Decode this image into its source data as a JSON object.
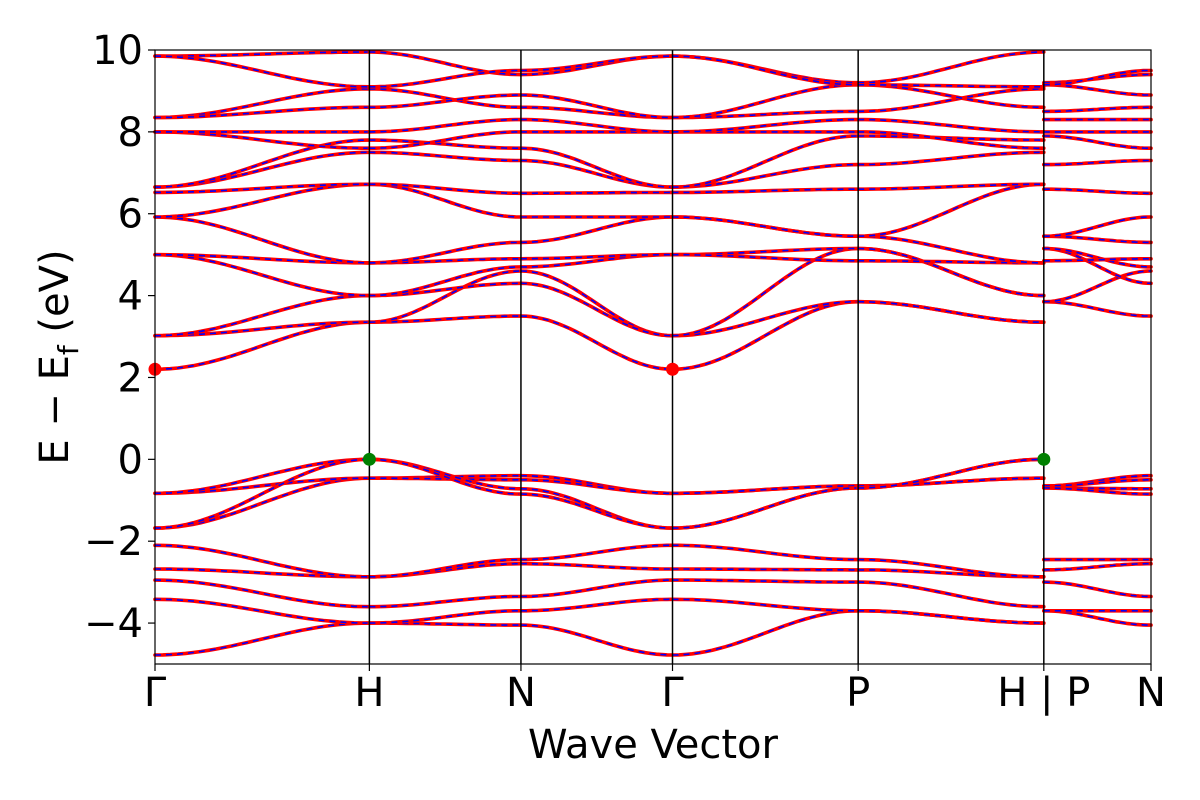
{
  "chart_data": {
    "type": "line",
    "title": "",
    "xlabel": "Wave Vector",
    "ylabel_parts": {
      "main": "E − E",
      "sub": "f",
      "unit": " (eV)"
    },
    "ylim": [
      -5,
      10
    ],
    "y_ticks": [
      -4,
      -2,
      0,
      2,
      4,
      6,
      8,
      10
    ],
    "y_tick_labels": [
      "−4",
      "−2",
      "0",
      "2",
      "4",
      "6",
      "8",
      "10"
    ],
    "x_ticks": [
      {
        "pos": 0.0,
        "label": "Γ"
      },
      {
        "pos": 1.0,
        "label": "H"
      },
      {
        "pos": 1.707,
        "label": "N"
      },
      {
        "pos": 2.414,
        "label": "Γ"
      },
      {
        "pos": 3.28,
        "label": "P"
      },
      {
        "pos": 4.146,
        "label": "H | P"
      },
      {
        "pos": 4.646,
        "label": "N"
      }
    ],
    "xlim": [
      0,
      4.646
    ],
    "grid": false,
    "legend": "none",
    "band_style": {
      "color": "#ff0000",
      "overlay_color": "#0000ff",
      "overlay_dash": "dashed"
    },
    "segments": [
      {
        "path": "Γ-H",
        "x": [
          0.0,
          1.0
        ],
        "bands": [
          [
            -4.78,
            -4.0
          ],
          [
            -3.42,
            -4.0
          ],
          [
            -2.95,
            -3.6
          ],
          [
            -2.68,
            -2.87
          ],
          [
            -2.1,
            -2.87
          ],
          [
            -1.68,
            -0.46
          ],
          [
            -0.83,
            -0.46
          ],
          [
            -0.83,
            0.0
          ],
          [
            -1.68,
            0.0
          ],
          [
            2.2,
            3.35
          ],
          [
            3.02,
            3.35
          ],
          [
            3.02,
            4.0
          ],
          [
            5.0,
            4.0
          ],
          [
            5.0,
            4.8
          ],
          [
            5.92,
            4.8
          ],
          [
            5.92,
            6.72
          ],
          [
            6.52,
            6.72
          ],
          [
            6.65,
            7.5
          ],
          [
            6.65,
            7.8
          ],
          [
            8.0,
            7.6
          ],
          [
            8.0,
            8.0
          ],
          [
            8.35,
            9.05
          ],
          [
            8.35,
            8.6
          ],
          [
            9.85,
            9.95
          ],
          [
            9.85,
            9.1
          ]
        ]
      },
      {
        "path": "H-N",
        "x": [
          1.0,
          1.707
        ],
        "bands": [
          [
            -4.0,
            -4.05
          ],
          [
            -4.0,
            -3.7
          ],
          [
            -3.6,
            -3.35
          ],
          [
            -2.87,
            -2.55
          ],
          [
            -2.87,
            -2.45
          ],
          [
            -0.46,
            -0.4
          ],
          [
            -0.46,
            -0.5
          ],
          [
            0.0,
            -0.72
          ],
          [
            0.0,
            -0.85
          ],
          [
            3.35,
            3.5
          ],
          [
            3.35,
            4.6
          ],
          [
            4.0,
            4.3
          ],
          [
            4.0,
            4.7
          ],
          [
            4.8,
            4.9
          ],
          [
            4.8,
            5.3
          ],
          [
            6.72,
            5.92
          ],
          [
            6.72,
            6.5
          ],
          [
            7.5,
            7.3
          ],
          [
            7.8,
            7.6
          ],
          [
            7.6,
            8.0
          ],
          [
            8.0,
            8.3
          ],
          [
            9.05,
            8.6
          ],
          [
            8.6,
            8.9
          ],
          [
            9.95,
            9.4
          ],
          [
            9.1,
            9.5
          ]
        ]
      },
      {
        "path": "N-Γ",
        "x": [
          1.707,
          2.414
        ],
        "bands": [
          [
            -4.05,
            -4.78
          ],
          [
            -3.7,
            -3.42
          ],
          [
            -3.35,
            -2.95
          ],
          [
            -2.55,
            -2.68
          ],
          [
            -2.45,
            -2.1
          ],
          [
            -0.4,
            -0.83
          ],
          [
            -0.5,
            -0.83
          ],
          [
            -0.72,
            -1.68
          ],
          [
            -0.85,
            -1.68
          ],
          [
            3.5,
            2.2
          ],
          [
            4.6,
            3.02
          ],
          [
            4.3,
            3.02
          ],
          [
            4.7,
            5.0
          ],
          [
            4.9,
            5.0
          ],
          [
            5.3,
            5.92
          ],
          [
            5.92,
            5.92
          ],
          [
            6.5,
            6.52
          ],
          [
            7.3,
            6.65
          ],
          [
            7.6,
            6.65
          ],
          [
            8.0,
            8.0
          ],
          [
            8.3,
            8.0
          ],
          [
            8.6,
            8.35
          ],
          [
            8.9,
            8.35
          ],
          [
            9.4,
            9.85
          ],
          [
            9.5,
            9.85
          ]
        ]
      },
      {
        "path": "Γ-P",
        "x": [
          2.414,
          3.28
        ],
        "bands": [
          [
            -4.78,
            -3.7
          ],
          [
            -3.42,
            -3.7
          ],
          [
            -2.95,
            -3.0
          ],
          [
            -2.68,
            -2.7
          ],
          [
            -2.1,
            -2.45
          ],
          [
            -0.83,
            -0.65
          ],
          [
            -0.83,
            -0.65
          ],
          [
            -1.68,
            -0.7
          ],
          [
            -1.68,
            -0.7
          ],
          [
            2.2,
            3.85
          ],
          [
            3.02,
            3.85
          ],
          [
            3.02,
            5.15
          ],
          [
            5.0,
            5.15
          ],
          [
            5.0,
            4.85
          ],
          [
            5.92,
            5.45
          ],
          [
            5.92,
            5.45
          ],
          [
            6.52,
            6.6
          ],
          [
            6.65,
            7.2
          ],
          [
            6.65,
            7.9
          ],
          [
            8.0,
            8.0
          ],
          [
            8.0,
            8.3
          ],
          [
            8.35,
            8.5
          ],
          [
            8.35,
            9.15
          ],
          [
            9.85,
            9.2
          ],
          [
            9.85,
            9.15
          ]
        ]
      },
      {
        "path": "P-H",
        "x": [
          3.28,
          4.146
        ],
        "bands": [
          [
            -3.7,
            -4.0
          ],
          [
            -3.7,
            -4.0
          ],
          [
            -3.0,
            -3.6
          ],
          [
            -2.7,
            -2.87
          ],
          [
            -2.45,
            -2.87
          ],
          [
            -0.65,
            -0.46
          ],
          [
            -0.65,
            -0.46
          ],
          [
            -0.7,
            0.0
          ],
          [
            -0.7,
            0.0
          ],
          [
            3.85,
            3.35
          ],
          [
            3.85,
            3.35
          ],
          [
            5.15,
            4.0
          ],
          [
            5.15,
            4.0
          ],
          [
            4.85,
            4.8
          ],
          [
            5.45,
            4.8
          ],
          [
            5.45,
            6.72
          ],
          [
            6.6,
            6.72
          ],
          [
            7.2,
            7.5
          ],
          [
            7.9,
            7.8
          ],
          [
            8.0,
            7.6
          ],
          [
            8.3,
            8.0
          ],
          [
            8.5,
            9.05
          ],
          [
            9.15,
            8.6
          ],
          [
            9.2,
            9.95
          ],
          [
            9.15,
            9.1
          ]
        ]
      },
      {
        "path": "P-N",
        "x": [
          4.146,
          4.646
        ],
        "bands": [
          [
            -3.7,
            -4.05
          ],
          [
            -3.7,
            -3.7
          ],
          [
            -3.0,
            -3.35
          ],
          [
            -2.7,
            -2.55
          ],
          [
            -2.45,
            -2.45
          ],
          [
            -0.65,
            -0.4
          ],
          [
            -0.65,
            -0.5
          ],
          [
            -0.7,
            -0.72
          ],
          [
            -0.7,
            -0.85
          ],
          [
            3.85,
            3.5
          ],
          [
            3.85,
            4.6
          ],
          [
            5.15,
            4.3
          ],
          [
            5.15,
            4.7
          ],
          [
            4.85,
            4.9
          ],
          [
            5.45,
            5.3
          ],
          [
            5.45,
            5.92
          ],
          [
            6.6,
            6.5
          ],
          [
            7.2,
            7.3
          ],
          [
            7.9,
            7.6
          ],
          [
            8.0,
            8.0
          ],
          [
            8.3,
            8.3
          ],
          [
            8.5,
            8.6
          ],
          [
            9.15,
            8.9
          ],
          [
            9.2,
            9.4
          ],
          [
            9.15,
            9.5
          ]
        ]
      }
    ],
    "markers": [
      {
        "name": "CBM",
        "x": 0.0,
        "y": 2.2,
        "color": "#ff0000"
      },
      {
        "name": "CBM",
        "x": 2.414,
        "y": 2.2,
        "color": "#ff0000"
      },
      {
        "name": "VBM",
        "x": 1.0,
        "y": 0.0,
        "color": "#008000"
      },
      {
        "name": "VBM",
        "x": 4.146,
        "y": 0.0,
        "color": "#008000"
      }
    ]
  }
}
